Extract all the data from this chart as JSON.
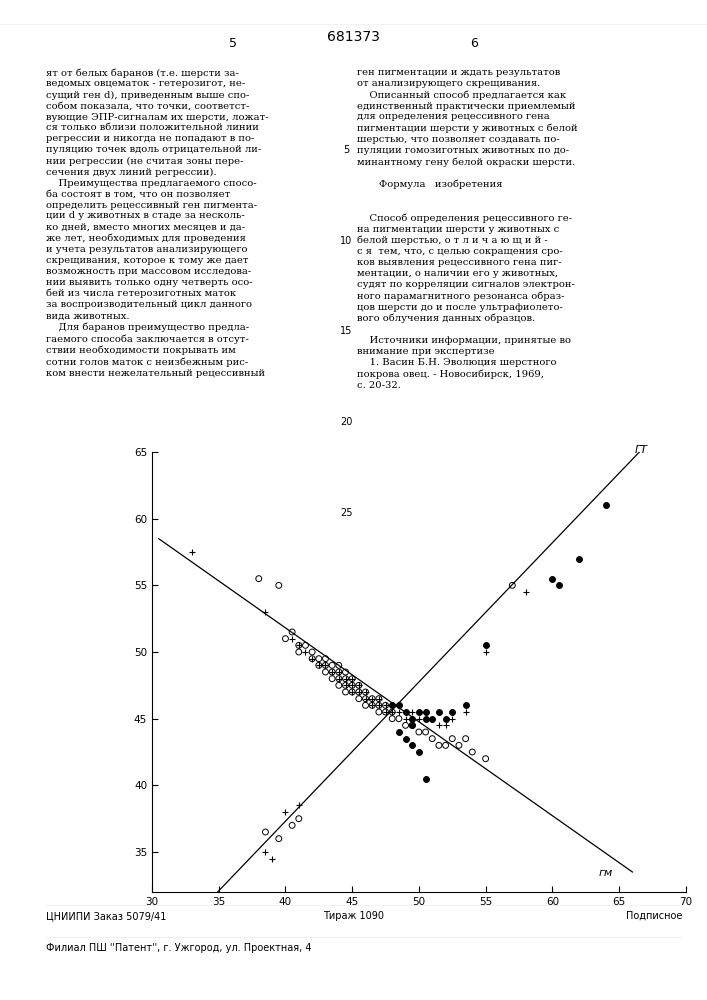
{
  "xlim": [
    30,
    70
  ],
  "ylim": [
    32,
    65
  ],
  "xticks": [
    30,
    35,
    40,
    45,
    50,
    55,
    60,
    65,
    70
  ],
  "yticks": [
    35,
    40,
    45,
    50,
    55,
    60,
    65
  ],
  "label_gt": "ГТ",
  "label_gm": "гм",
  "open_circles": [
    [
      38.0,
      55.5
    ],
    [
      39.5,
      55.0
    ],
    [
      40.0,
      51.0
    ],
    [
      40.5,
      51.5
    ],
    [
      41.0,
      50.5
    ],
    [
      41.0,
      50.0
    ],
    [
      41.5,
      50.5
    ],
    [
      42.0,
      50.0
    ],
    [
      42.0,
      49.5
    ],
    [
      42.5,
      49.5
    ],
    [
      42.5,
      49.0
    ],
    [
      43.0,
      49.5
    ],
    [
      43.0,
      49.0
    ],
    [
      43.0,
      48.5
    ],
    [
      43.5,
      49.0
    ],
    [
      43.5,
      48.5
    ],
    [
      43.5,
      48.0
    ],
    [
      44.0,
      49.0
    ],
    [
      44.0,
      48.5
    ],
    [
      44.0,
      48.0
    ],
    [
      44.0,
      47.5
    ],
    [
      44.5,
      48.5
    ],
    [
      44.5,
      48.0
    ],
    [
      44.5,
      47.5
    ],
    [
      44.5,
      47.0
    ],
    [
      45.0,
      48.0
    ],
    [
      45.0,
      47.5
    ],
    [
      45.0,
      47.0
    ],
    [
      45.5,
      47.5
    ],
    [
      45.5,
      47.0
    ],
    [
      45.5,
      46.5
    ],
    [
      46.0,
      47.0
    ],
    [
      46.0,
      46.5
    ],
    [
      46.0,
      46.0
    ],
    [
      46.5,
      46.5
    ],
    [
      46.5,
      46.0
    ],
    [
      47.0,
      46.5
    ],
    [
      47.0,
      46.0
    ],
    [
      47.0,
      45.5
    ],
    [
      47.5,
      46.0
    ],
    [
      47.5,
      45.5
    ],
    [
      48.0,
      45.5
    ],
    [
      48.0,
      45.0
    ],
    [
      48.5,
      45.0
    ],
    [
      49.0,
      44.5
    ],
    [
      49.5,
      44.5
    ],
    [
      50.0,
      44.0
    ],
    [
      50.5,
      44.0
    ],
    [
      51.0,
      43.5
    ],
    [
      51.5,
      43.0
    ],
    [
      52.0,
      43.0
    ],
    [
      52.5,
      43.5
    ],
    [
      53.0,
      43.0
    ],
    [
      53.5,
      43.5
    ],
    [
      54.0,
      42.5
    ],
    [
      55.0,
      42.0
    ],
    [
      57.0,
      55.0
    ],
    [
      38.5,
      36.5
    ],
    [
      39.5,
      36.0
    ],
    [
      40.5,
      37.0
    ],
    [
      41.0,
      37.5
    ]
  ],
  "plus_signs": [
    [
      33.0,
      57.5
    ],
    [
      38.5,
      53.0
    ],
    [
      40.5,
      51.0
    ],
    [
      41.0,
      50.5
    ],
    [
      41.5,
      50.0
    ],
    [
      42.0,
      49.5
    ],
    [
      42.5,
      49.0
    ],
    [
      43.0,
      49.0
    ],
    [
      43.5,
      48.5
    ],
    [
      44.0,
      48.5
    ],
    [
      44.0,
      48.0
    ],
    [
      44.5,
      48.0
    ],
    [
      44.5,
      47.5
    ],
    [
      45.0,
      48.0
    ],
    [
      45.0,
      47.5
    ],
    [
      45.0,
      47.0
    ],
    [
      45.5,
      47.5
    ],
    [
      45.5,
      47.0
    ],
    [
      46.0,
      47.0
    ],
    [
      46.0,
      46.5
    ],
    [
      46.5,
      46.5
    ],
    [
      46.5,
      46.0
    ],
    [
      47.0,
      46.5
    ],
    [
      47.0,
      46.0
    ],
    [
      47.5,
      46.0
    ],
    [
      47.5,
      45.5
    ],
    [
      48.0,
      46.0
    ],
    [
      48.0,
      45.5
    ],
    [
      48.5,
      45.5
    ],
    [
      49.0,
      45.0
    ],
    [
      49.5,
      45.5
    ],
    [
      50.0,
      45.0
    ],
    [
      50.5,
      45.5
    ],
    [
      51.0,
      45.0
    ],
    [
      51.5,
      44.5
    ],
    [
      52.0,
      44.5
    ],
    [
      52.5,
      45.0
    ],
    [
      53.5,
      45.5
    ],
    [
      55.0,
      50.0
    ],
    [
      58.0,
      54.5
    ],
    [
      38.5,
      35.0
    ],
    [
      39.0,
      34.5
    ],
    [
      40.0,
      38.0
    ],
    [
      41.0,
      38.5
    ]
  ],
  "filled_circles": [
    [
      48.0,
      46.0
    ],
    [
      48.5,
      46.0
    ],
    [
      49.0,
      45.5
    ],
    [
      49.5,
      45.0
    ],
    [
      49.5,
      44.5
    ],
    [
      50.0,
      45.5
    ],
    [
      50.5,
      45.5
    ],
    [
      50.5,
      45.0
    ],
    [
      51.0,
      45.0
    ],
    [
      51.5,
      45.5
    ],
    [
      52.0,
      45.0
    ],
    [
      52.5,
      45.5
    ],
    [
      53.5,
      46.0
    ],
    [
      55.0,
      50.5
    ],
    [
      60.0,
      55.5
    ],
    [
      60.5,
      55.0
    ],
    [
      62.0,
      57.0
    ],
    [
      64.0,
      61.0
    ],
    [
      48.5,
      44.0
    ],
    [
      49.0,
      43.5
    ],
    [
      49.5,
      43.0
    ],
    [
      50.0,
      42.5
    ],
    [
      50.5,
      40.5
    ]
  ],
  "background_color": "#ffffff",
  "figsize": [
    7.07,
    10.0
  ],
  "dpi": 100,
  "header_number": "681373",
  "page_left": "5",
  "page_right": "6",
  "text_left": "ят от белых баранов (т.е. шерсти за-\nведомых овцематок - гетерозигот, не-\nсущий ген d), приведенным выше спо-\nсобом показала, что точки, соответст-\nвующие ЭПР-сигналам их шерсти, ложат-\nся только вблизи положительной линии\nрегрессии и никогда не попадают в по-\nпуляцию точек вдоль отрицательной ли-\nнии регрессии (не считая зоны пере-\nсечения двух линий регрессии).\n    Преимущества предлагаемого спосо-\nба состоят в том, что он позволяет\nопределить рецессивный ген пигмента-\nции d у животных в стаде за несколь-\nко дней, вместо многих месяцев и да-\nже лет, необходимых для проведения\nи учета результатов анализирующего\nскрещивания, которое к тому же дает\nвозможность при массовом исследова-\nнии выявить только одну четверть осо-\nбей из числа гетерозиготных маток\nза воспроизводительный цикл данного\nвида животных.\n    Для баранов преимущество предла-\nгаемого способа заключается в отсут-\nствии необходимости покрывать им\nсотни голов маток с неизбежным рис-\nком внести нежелательный рецессивный",
  "text_right": "ген пигментации и ждать результатов\nот анализирующего скрещивания.\n    Описанный способ предлагается как\nединственный практически приемлемый\nдля определения рецессивного гена\nпигментации шерсти у животных с белой\nшерстью, что позволяет создавать по-\nпуляции гомозиготных животных по до-\nминантному гену белой окраски шерсти.\n\n       Формула   изобретения\n\n\n    Способ определения рецессивного ге-\nна пигментации шерсти у животных с\nбелой шерстью, о т л и ч а ю щ и й -\nс я  тем, что, с целью сокращения сро-\nков выявления рецессивного гена пиг-\nментации, о наличии его у животных,\nсудят по корреляции сигналов электрон-\nного парамагнитного резонанса образ-\nцов шерсти до и после ультрафиолето-\nвого облучения данных образцов.\n\n    Источники информации, принятые во\nвнимание при экспертизе\n    1. Васин Б.Н. Эволюция шерстного\nпокрова овец. - Новосибирск, 1969,\nс. 20-32.",
  "line_nums": [
    "5",
    "10",
    "15",
    "20",
    "25"
  ],
  "footer1": "ЦНИИПИ Заказ 5079/41",
  "footer2": "Тираж 1090",
  "footer3": "Подписное",
  "footer4": "Филиал ПШ ''Патент'', г. Ужгород, ул. Проектная, 4"
}
